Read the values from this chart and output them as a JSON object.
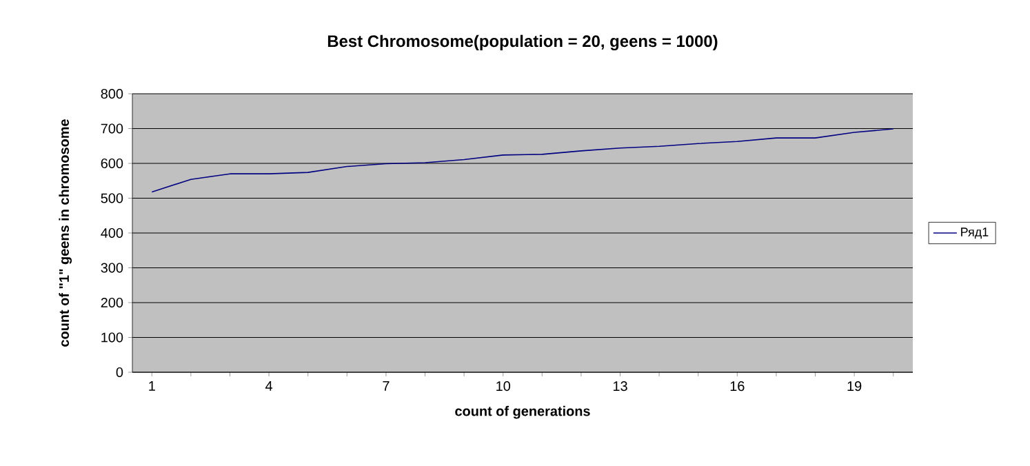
{
  "chart_data": {
    "type": "line",
    "title": "Best Chromosome(population = 20, geens = 1000)",
    "xlabel": "count of generations",
    "ylabel": "count of \"1\" geens in chromosome",
    "categories": [
      "1",
      null,
      null,
      "4",
      null,
      null,
      "7",
      null,
      null,
      "10",
      null,
      null,
      "13",
      null,
      null,
      "16",
      null,
      null,
      "19",
      null
    ],
    "series": [
      {
        "name": "Ряд1",
        "color": "#000080",
        "values": [
          518,
          554,
          570,
          570,
          574,
          591,
          599,
          602,
          611,
          624,
          626,
          636,
          644,
          649,
          657,
          663,
          673,
          673,
          689,
          699
        ]
      }
    ],
    "ylim": [
      0,
      800
    ],
    "yticks": [
      0,
      100,
      200,
      300,
      400,
      500,
      600,
      700,
      800
    ],
    "grid": "y",
    "legend": "right",
    "marker": "none",
    "line_style": "solid"
  }
}
